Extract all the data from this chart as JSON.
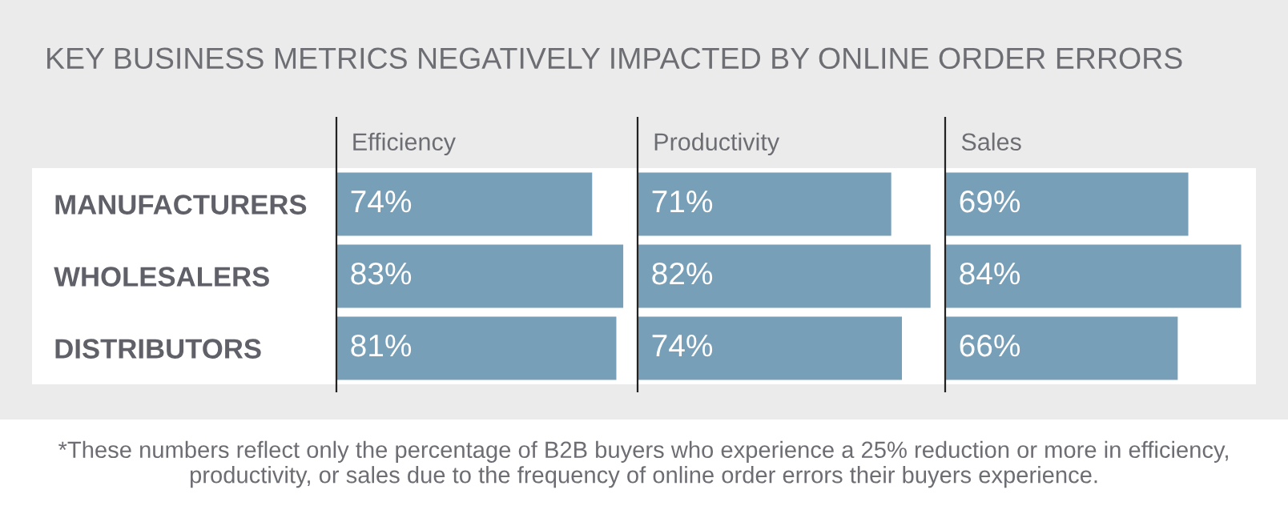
{
  "chart_data": [
    {
      "type": "bar",
      "orientation": "horizontal",
      "title": "Efficiency",
      "annotations": [
        "KEY BUSINESS METRICS NEGATIVELY IMPACTED BY ONLINE ORDER ERRORS"
      ],
      "categories": [
        "MANUFACTURERS",
        "WHOLESALERS",
        "DISTRIBUTORS"
      ],
      "values": [
        74,
        83,
        81
      ],
      "value_labels": [
        "74%",
        "83%",
        "81%"
      ],
      "color": "#77a0b8",
      "tick_labels": "y"
    },
    {
      "type": "bar",
      "orientation": "horizontal",
      "title": "Productivity",
      "categories": [
        null,
        null,
        null
      ],
      "values": [
        71,
        82,
        74
      ],
      "value_labels": [
        "71%",
        "82%",
        "74%"
      ],
      "color": "#77a0b8",
      "tick_labels": false
    },
    {
      "type": "bar",
      "orientation": "horizontal",
      "title": "Sales",
      "annotations": [
        "*These numbers reflect only the percentage of B2B buyers who experience a 25% reduction or more in efficiency, productivity, or sales due to the frequency of online order errors their buyers experience."
      ],
      "categories": [
        null,
        null,
        null
      ],
      "values": [
        69,
        84,
        66
      ],
      "value_labels": [
        "69%",
        "84%",
        "66%"
      ],
      "color": "#77a0b8",
      "tick_labels": false
    }
  ]
}
